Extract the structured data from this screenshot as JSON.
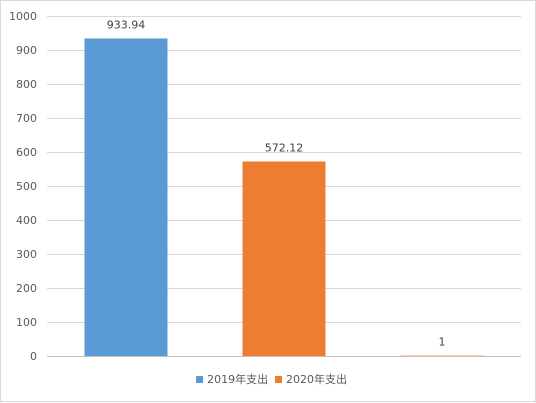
{
  "chart_data": {
    "type": "bar",
    "categories": [
      "",
      "",
      ""
    ],
    "series": [
      {
        "name": "2019年支出",
        "color": "#5b9bd5",
        "values": [
          933.94,
          null,
          null
        ],
        "labels": [
          "933.94",
          "",
          ""
        ]
      },
      {
        "name": "2020年支出",
        "color": "#ed7d31",
        "values": [
          null,
          572.12,
          1
        ],
        "labels": [
          "",
          "572.12",
          "1"
        ]
      }
    ],
    "ylim": [
      0,
      1000
    ],
    "yticks": [
      0,
      100,
      200,
      300,
      400,
      500,
      600,
      700,
      800,
      900,
      1000
    ],
    "grid": true,
    "legend": "bottom",
    "title": "",
    "xlabel": "",
    "ylabel": ""
  }
}
